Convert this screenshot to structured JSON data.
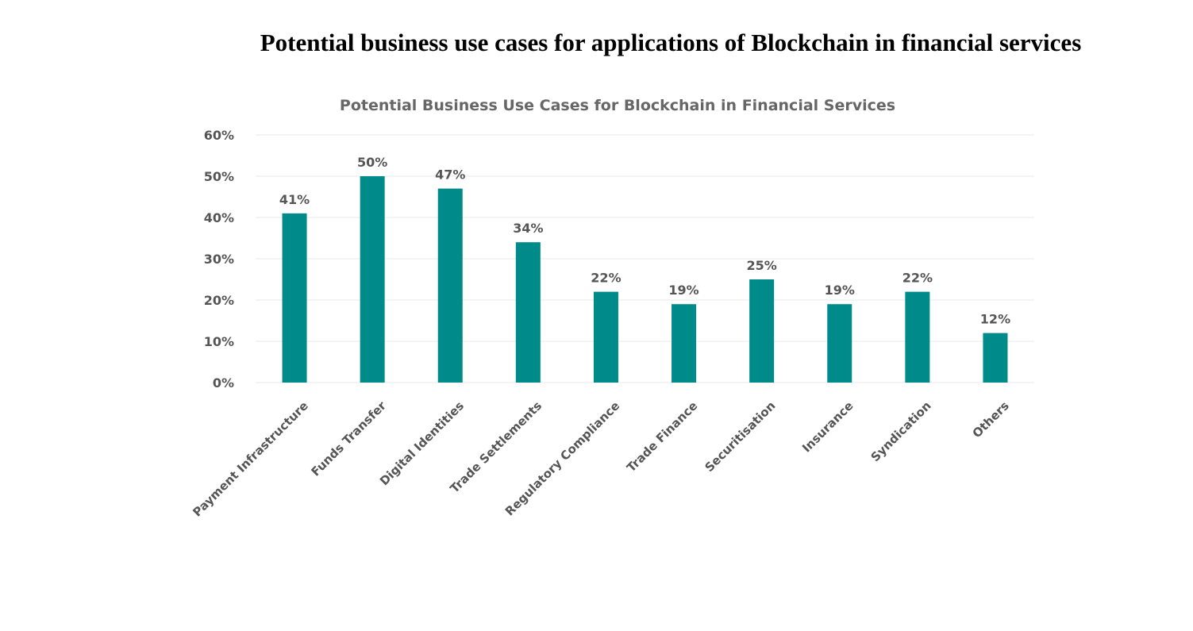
{
  "page": {
    "heading": "Potential business use cases for applications of Blockchain in financial services"
  },
  "chart_data": {
    "type": "bar",
    "title": "Potential Business Use Cases for Blockchain in Financial Services",
    "xlabel": "",
    "ylabel": "",
    "categories": [
      "Payment Infrastructure",
      "Funds Transfer",
      "Digital Identities",
      "Trade Settlements",
      "Regulatory Compliance",
      "Trade Finance",
      "Securitisation",
      "Insurance",
      "Syndication",
      "Others"
    ],
    "values": [
      41,
      50,
      47,
      34,
      22,
      19,
      25,
      19,
      22,
      12
    ],
    "data_labels": [
      "41%",
      "50%",
      "47%",
      "34%",
      "22%",
      "19%",
      "25%",
      "19%",
      "22%",
      "12%"
    ],
    "ylim": [
      0,
      60
    ],
    "yticks": [
      0,
      10,
      20,
      30,
      40,
      50,
      60
    ],
    "ytick_labels": [
      "0%",
      "10%",
      "20%",
      "30%",
      "40%",
      "50%",
      "60%"
    ],
    "grid": true,
    "legend": "none",
    "colors": {
      "bar": "#008b8b",
      "grid": "#e8e8e8",
      "text": "#555555",
      "title": "#666666"
    }
  }
}
